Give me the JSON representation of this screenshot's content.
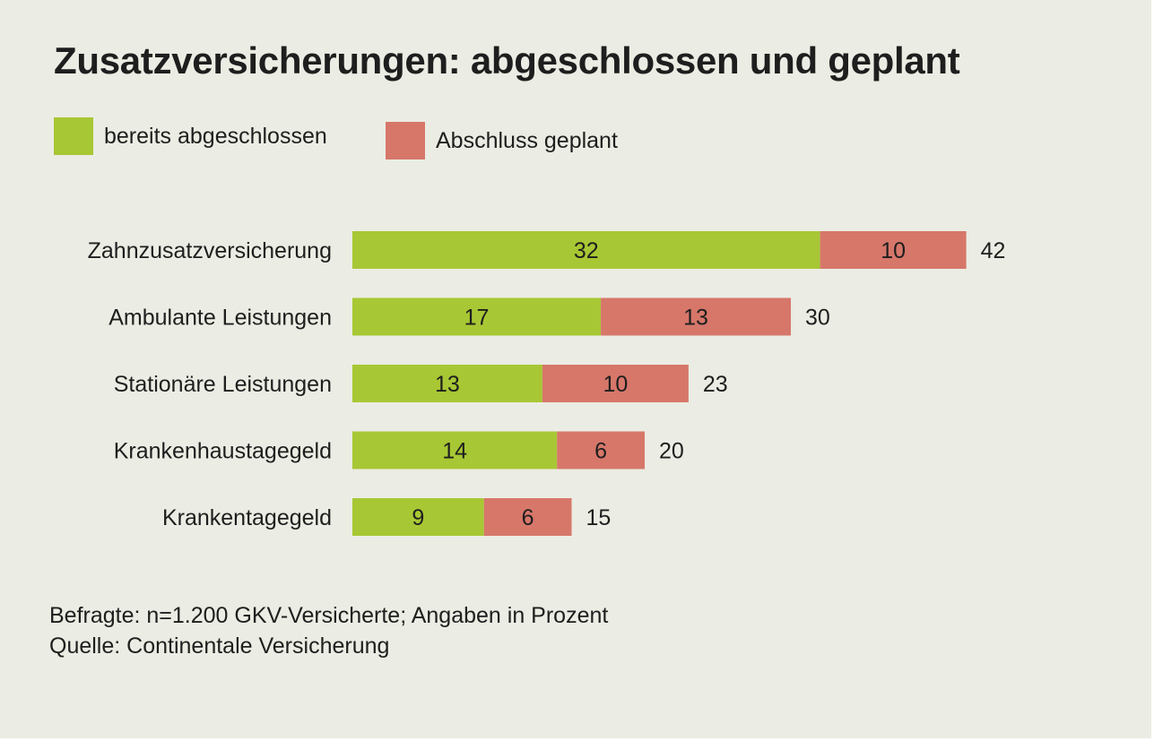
{
  "chart_data": {
    "type": "bar",
    "orientation": "horizontal",
    "stacked": true,
    "title": "Zusatzversicherungen: abgeschlossen und geplant",
    "categories": [
      "Zahnzusatzversicherung",
      "Ambulante Leistungen",
      "Stationäre Leistungen",
      "Krankenhaustagegeld",
      "Krankentagegeld"
    ],
    "series": [
      {
        "name": "bereits abgeschlossen",
        "values": [
          32,
          17,
          13,
          14,
          9
        ],
        "color": "#a8c734"
      },
      {
        "name": "Abschluss geplant",
        "values": [
          10,
          13,
          10,
          6,
          6
        ],
        "color": "#d6776a"
      }
    ],
    "totals": [
      42,
      30,
      23,
      20,
      15
    ],
    "legend_position": "top-left",
    "grid": false
  },
  "footer": {
    "line1": "Befragte: n=1.200 GKV-Versicherte; Angaben in Prozent",
    "line2": "Quelle: Continentale Versicherung"
  }
}
